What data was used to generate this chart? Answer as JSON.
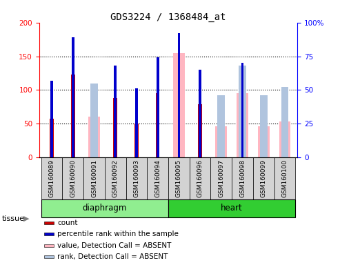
{
  "title": "GDS3224 / 1368484_at",
  "samples": [
    "GSM160089",
    "GSM160090",
    "GSM160091",
    "GSM160092",
    "GSM160093",
    "GSM160094",
    "GSM160095",
    "GSM160096",
    "GSM160097",
    "GSM160098",
    "GSM160099",
    "GSM160100"
  ],
  "red_values": [
    57,
    123,
    0,
    88,
    50,
    95,
    0,
    79,
    0,
    0,
    0,
    0
  ],
  "blue_values": [
    57,
    89,
    0,
    68,
    51,
    74,
    92,
    65,
    0,
    70,
    0,
    0
  ],
  "pink_values": [
    0,
    0,
    60,
    0,
    0,
    0,
    155,
    0,
    46,
    95,
    46,
    53
  ],
  "lightblue_values": [
    0,
    0,
    55,
    0,
    0,
    0,
    0,
    0,
    46,
    68,
    46,
    52
  ],
  "ylim_left": [
    0,
    200
  ],
  "ylim_right": [
    0,
    100
  ],
  "yticks_left": [
    0,
    50,
    100,
    150,
    200
  ],
  "yticks_right": [
    0,
    25,
    50,
    75,
    100
  ],
  "ytick_labels_left": [
    "0",
    "50",
    "100",
    "150",
    "200"
  ],
  "ytick_labels_right": [
    "0",
    "25",
    "50",
    "75",
    "100%"
  ],
  "groups": [
    {
      "label": "diaphragm",
      "start": 0,
      "end": 6
    },
    {
      "label": "heart",
      "start": 6,
      "end": 12
    }
  ],
  "tissue_label": "tissue",
  "legend_items": [
    {
      "color": "#CC0000",
      "label": "count"
    },
    {
      "color": "#0000CC",
      "label": "percentile rank within the sample"
    },
    {
      "color": "#FFB6C1",
      "label": "value, Detection Call = ABSENT"
    },
    {
      "color": "#B0C4DE",
      "label": "rank, Detection Call = ABSENT"
    }
  ],
  "red_color": "#CC0000",
  "blue_color": "#0000CC",
  "pink_color": "#FFB6C1",
  "lightblue_color": "#B0C4DE",
  "gray_bg": "#D3D3D3",
  "green_light": "#90EE90",
  "green_dark": "#32CD32"
}
